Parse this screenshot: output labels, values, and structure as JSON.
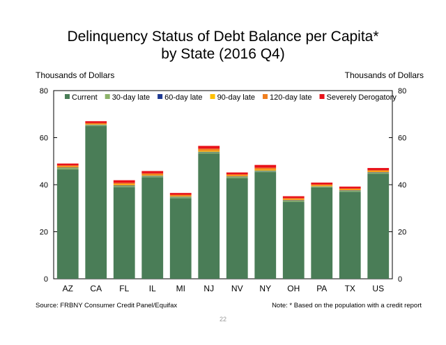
{
  "title_line1": "Delinquency Status of Debt Balance per Capita*",
  "title_line2": "by State (2016 Q4)",
  "footer": {
    "source": "Source: FRBNY Consumer Credit Panel/Equifax",
    "note": "Note: * Based on the population with a credit report",
    "page": "22"
  },
  "chart_data": {
    "type": "bar",
    "stacked": true,
    "ylabel": "Thousands of Dollars",
    "ylabel_right": "Thousands of Dollars",
    "ylim": [
      0,
      80
    ],
    "yticks": [
      0,
      20,
      40,
      60,
      80
    ],
    "grid": false,
    "legend_position": "top",
    "categories": [
      "AZ",
      "CA",
      "FL",
      "IL",
      "MI",
      "NJ",
      "NV",
      "NY",
      "OH",
      "PA",
      "TX",
      "US"
    ],
    "series": [
      {
        "name": "Current",
        "color": "#4a7d57",
        "values": [
          46.5,
          65.0,
          39.0,
          43.2,
          34.3,
          53.3,
          42.8,
          45.4,
          32.8,
          38.9,
          37.0,
          44.7
        ]
      },
      {
        "name": "30-day late",
        "color": "#8db36a",
        "values": [
          0.6,
          0.4,
          0.5,
          0.4,
          0.4,
          0.5,
          0.5,
          0.4,
          0.4,
          0.3,
          0.4,
          0.4
        ]
      },
      {
        "name": "60-day late",
        "color": "#1f3a93",
        "values": [
          0.2,
          0.1,
          0.2,
          0.2,
          0.2,
          0.2,
          0.2,
          0.2,
          0.2,
          0.1,
          0.2,
          0.2
        ]
      },
      {
        "name": "90-day late",
        "color": "#ffc000",
        "values": [
          0.3,
          0.2,
          0.4,
          0.3,
          0.3,
          0.4,
          0.3,
          0.4,
          0.3,
          0.3,
          0.3,
          0.3
        ]
      },
      {
        "name": "120-day late",
        "color": "#f07f1f",
        "values": [
          0.6,
          0.5,
          0.7,
          0.7,
          0.5,
          0.9,
          0.6,
          0.8,
          0.6,
          0.5,
          0.5,
          0.6
        ]
      },
      {
        "name": "Severely Derogatory",
        "color": "#e8121a",
        "values": [
          0.8,
          0.8,
          1.1,
          1.0,
          0.8,
          1.2,
          0.8,
          1.2,
          0.8,
          0.8,
          0.8,
          0.9
        ]
      }
    ]
  }
}
